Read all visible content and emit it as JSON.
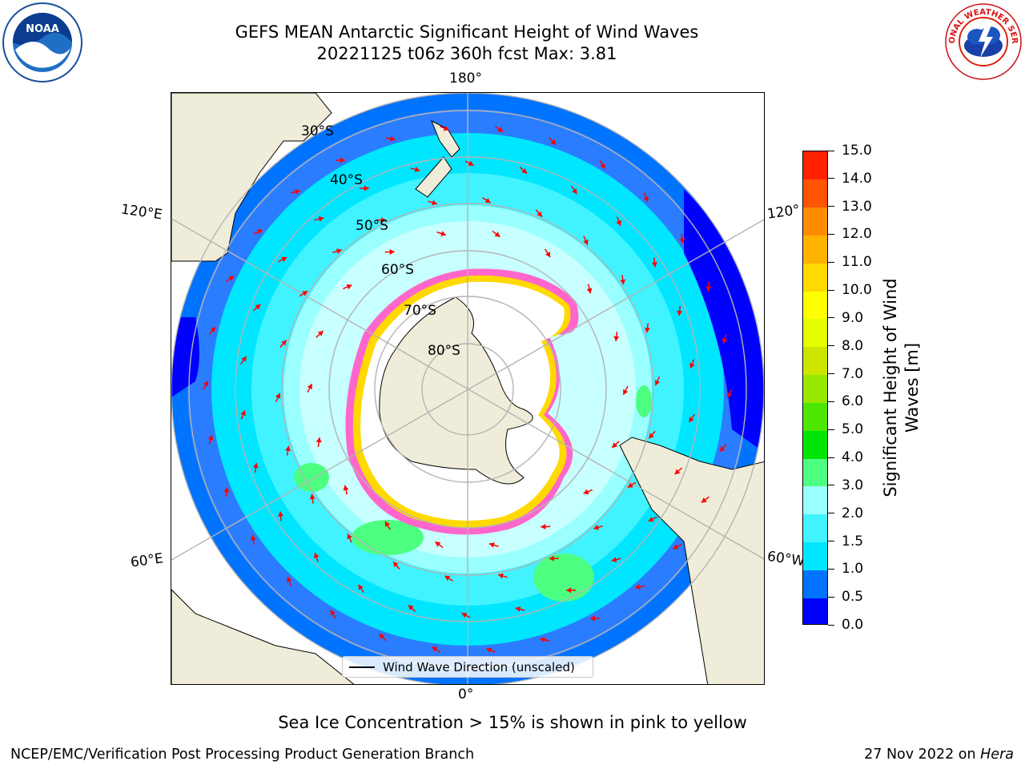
{
  "title": {
    "line1": "GEFS MEAN Antarctic Significant Height of Wind Waves",
    "line2": "20221125 t06z 360h fcst   Max: 3.81"
  },
  "map": {
    "meridian_labels": {
      "top": "180°",
      "bottom": "0°",
      "upper_left": "120°E",
      "upper_right": "120°",
      "lower_left": "60°E",
      "lower_right": "60°W"
    },
    "latitude_labels": [
      "30°S",
      "40°S",
      "50°S",
      "60°S",
      "70°S",
      "80°S"
    ],
    "legend": "Wind Wave Direction (unscaled)",
    "colors": {
      "land": "#efedd9",
      "ice": "#ffffff",
      "ice_edge": "#ff66cc",
      "arrows": "#ff0000",
      "grid": "#b4b4b4"
    }
  },
  "colorbar": {
    "label": "Significant Height of Wind Waves [m]",
    "label_line1": "Significant Height of Wind",
    "label_line2": "Waves [m]",
    "ticks": [
      "0.0",
      "0.5",
      "1.0",
      "1.5",
      "2.0",
      "3.0",
      "4.0",
      "5.0",
      "6.0",
      "7.0",
      "8.0",
      "9.0",
      "10.0",
      "11.0",
      "12.0",
      "13.0",
      "14.0",
      "15.0"
    ],
    "colors": [
      "#0000ff",
      "#0073ff",
      "#00e6ff",
      "#40f3ff",
      "#99ffff",
      "#4dff80",
      "#00e600",
      "#4de600",
      "#99e600",
      "#cce600",
      "#e6ff00",
      "#ffff00",
      "#ffd900",
      "#ffb300",
      "#ff8c00",
      "#ff5500",
      "#ff2200"
    ]
  },
  "caption": "Sea Ice Concentration > 15% is shown in pink to yellow",
  "footer": {
    "left": "NCEP/EMC/Verification Post Processing Product Generation Branch",
    "right_prefix": "27 Nov 2022 on ",
    "right_host": "Hera"
  },
  "logos": {
    "noaa": "NOAA",
    "nws": "NATIONAL WEATHER SERVICE"
  }
}
